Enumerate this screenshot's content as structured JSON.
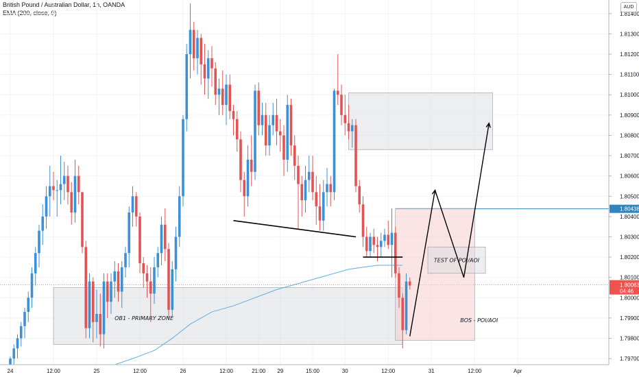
{
  "header": {
    "title": "British Pound / Australian Dollar, 1h, OANDA",
    "indicator": "EMA (200, close, 0)"
  },
  "currency_badge": "AUD",
  "chart_data": {
    "type": "candlestick",
    "symbol": "GBPAUD",
    "y_ticks": [
      "1.81400",
      "1.81300",
      "1.81200",
      "1.81100",
      "1.81000",
      "1.80900",
      "1.80800",
      "1.80700",
      "1.80600",
      "1.80500",
      "1.80400",
      "1.80300",
      "1.80200",
      "1.80100",
      "1.80000",
      "1.79900",
      "1.79800",
      "1.79700"
    ],
    "ylim": [
      1.7966,
      1.8145
    ],
    "x_ticks": [
      {
        "label": "24",
        "bar": 0
      },
      {
        "label": "12:00",
        "bar": 12
      },
      {
        "label": "25",
        "bar": 24
      },
      {
        "label": "12:00",
        "bar": 36
      },
      {
        "label": "26",
        "bar": 48
      },
      {
        "label": "12:00",
        "bar": 60
      },
      {
        "label": "21:00",
        "bar": 69
      },
      {
        "label": "29",
        "bar": 75
      },
      {
        "label": "15:00",
        "bar": 84
      },
      {
        "label": "30",
        "bar": 93
      },
      {
        "label": "12:00",
        "bar": 105
      },
      {
        "label": "31",
        "bar": 117
      },
      {
        "label": "12:00",
        "bar": 129
      },
      {
        "label": "Apr",
        "bar": 141
      }
    ],
    "candles": [
      [
        1.7967,
        1.7971,
        1.7963,
        1.797
      ],
      [
        1.797,
        1.7977,
        1.7965,
        1.7975
      ],
      [
        1.7975,
        1.7982,
        1.797,
        1.798
      ],
      [
        1.798,
        1.7988,
        1.7976,
        1.7986
      ],
      [
        1.7986,
        1.7995,
        1.798,
        1.7993
      ],
      [
        1.7993,
        1.8003,
        1.7988,
        1.8
      ],
      [
        1.8,
        1.8015,
        1.7995,
        1.8012
      ],
      [
        1.8012,
        1.8025,
        1.8006,
        1.8022
      ],
      [
        1.8022,
        1.8036,
        1.8015,
        1.8033
      ],
      [
        1.8033,
        1.8046,
        1.8026,
        1.804
      ],
      [
        1.804,
        1.8055,
        1.8034,
        1.805
      ],
      [
        1.805,
        1.8065,
        1.804,
        1.8055
      ],
      [
        1.8055,
        1.8062,
        1.8048,
        1.8053
      ],
      [
        1.8053,
        1.8058,
        1.804,
        1.8053
      ],
      [
        1.8053,
        1.807,
        1.8046,
        1.8056
      ],
      [
        1.8056,
        1.8067,
        1.8048,
        1.806
      ],
      [
        1.806,
        1.8065,
        1.8046,
        1.8052
      ],
      [
        1.8052,
        1.8057,
        1.8036,
        1.8042
      ],
      [
        1.8042,
        1.8068,
        1.8037,
        1.806
      ],
      [
        1.806,
        1.8065,
        1.8046,
        1.8052
      ],
      [
        1.8052,
        1.8052,
        1.8022,
        1.8025
      ],
      [
        1.8025,
        1.8028,
        1.798,
        1.7985
      ],
      [
        1.7985,
        1.8012,
        1.798,
        1.8008
      ],
      [
        1.8008,
        1.801,
        1.7978,
        1.7988
      ],
      [
        1.7988,
        1.8004,
        1.798,
        1.7992
      ],
      [
        1.7992,
        1.8002,
        1.7976,
        1.7982
      ],
      [
        1.7982,
        1.8012,
        1.7975,
        1.8008
      ],
      [
        1.8008,
        1.8012,
        1.799,
        1.7998
      ],
      [
        1.7998,
        1.8012,
        1.7992,
        1.8008
      ],
      [
        1.8008,
        1.8018,
        1.8,
        1.8013
      ],
      [
        1.8013,
        1.8017,
        1.7998,
        1.8003
      ],
      [
        1.8003,
        1.8018,
        1.7995,
        1.8015
      ],
      [
        1.8015,
        1.8025,
        1.801,
        1.8022
      ],
      [
        1.8022,
        1.8045,
        1.8015,
        1.8042
      ],
      [
        1.8042,
        1.8055,
        1.8035,
        1.805
      ],
      [
        1.805,
        1.8052,
        1.8035,
        1.804
      ],
      [
        1.804,
        1.8042,
        1.8012,
        1.8017
      ],
      [
        1.8017,
        1.802,
        1.8005,
        1.8012
      ],
      [
        1.8012,
        1.8016,
        1.8,
        1.8008
      ],
      [
        1.8008,
        1.8015,
        1.7988,
        1.8002
      ],
      [
        1.8002,
        1.802,
        1.7997,
        1.8015
      ],
      [
        1.8015,
        1.8025,
        1.801,
        1.8022
      ],
      [
        1.8022,
        1.804,
        1.8016,
        1.8036
      ],
      [
        1.8036,
        1.8044,
        1.8018,
        1.8024
      ],
      [
        1.8024,
        1.8027,
        1.799,
        1.7994
      ],
      [
        1.7994,
        1.8018,
        1.799,
        1.8014
      ],
      [
        1.8014,
        1.8035,
        1.8008,
        1.803
      ],
      [
        1.803,
        1.8055,
        1.8025,
        1.805
      ],
      [
        1.805,
        1.809,
        1.8045,
        1.8088
      ],
      [
        1.8088,
        1.8125,
        1.8082,
        1.812
      ],
      [
        1.812,
        1.8145,
        1.8108,
        1.8132
      ],
      [
        1.8132,
        1.8136,
        1.8112,
        1.8118
      ],
      [
        1.8118,
        1.8132,
        1.811,
        1.8128
      ],
      [
        1.8128,
        1.813,
        1.8105,
        1.8115
      ],
      [
        1.8115,
        1.8125,
        1.81,
        1.8108
      ],
      [
        1.8108,
        1.8122,
        1.8098,
        1.8118
      ],
      [
        1.8118,
        1.8124,
        1.8104,
        1.8113
      ],
      [
        1.8113,
        1.8116,
        1.8095,
        1.81
      ],
      [
        1.81,
        1.8108,
        1.809,
        1.8103
      ],
      [
        1.8103,
        1.8112,
        1.809,
        1.8095
      ],
      [
        1.8095,
        1.811,
        1.8085,
        1.8105
      ],
      [
        1.8105,
        1.811,
        1.8088,
        1.8092
      ],
      [
        1.8092,
        1.8095,
        1.808,
        1.8088
      ],
      [
        1.8088,
        1.8092,
        1.8072,
        1.8078
      ],
      [
        1.8078,
        1.8082,
        1.8052,
        1.8058
      ],
      [
        1.8058,
        1.8062,
        1.804,
        1.805
      ],
      [
        1.805,
        1.8075,
        1.8045,
        1.8068
      ],
      [
        1.8068,
        1.808,
        1.8055,
        1.8062
      ],
      [
        1.8062,
        1.8105,
        1.8058,
        1.8102
      ],
      [
        1.8102,
        1.8106,
        1.808,
        1.8085
      ],
      [
        1.8085,
        1.8096,
        1.808,
        1.809
      ],
      [
        1.809,
        1.8096,
        1.807,
        1.8075
      ],
      [
        1.8075,
        1.809,
        1.807,
        1.8085
      ],
      [
        1.8085,
        1.8096,
        1.808,
        1.809
      ],
      [
        1.809,
        1.8098,
        1.8075,
        1.8082
      ],
      [
        1.8082,
        1.8088,
        1.8072,
        1.808
      ],
      [
        1.808,
        1.8085,
        1.806,
        1.8068
      ],
      [
        1.8068,
        1.81,
        1.8062,
        1.8095
      ],
      [
        1.8095,
        1.8098,
        1.807,
        1.8075
      ],
      [
        1.8075,
        1.808,
        1.8058,
        1.8065
      ],
      [
        1.8065,
        1.807,
        1.8034,
        1.8056
      ],
      [
        1.8056,
        1.806,
        1.804,
        1.8048
      ],
      [
        1.8048,
        1.8065,
        1.8042,
        1.8058
      ],
      [
        1.8058,
        1.807,
        1.8052,
        1.8062
      ],
      [
        1.8062,
        1.807,
        1.8048,
        1.8052
      ],
      [
        1.8052,
        1.806,
        1.8036,
        1.8045
      ],
      [
        1.8045,
        1.8056,
        1.8033,
        1.8038
      ],
      [
        1.8038,
        1.8058,
        1.8033,
        1.8052
      ],
      [
        1.8052,
        1.8064,
        1.8045,
        1.8056
      ],
      [
        1.8056,
        1.806,
        1.8045,
        1.8052
      ],
      [
        1.8052,
        1.8103,
        1.8048,
        1.8102
      ],
      [
        1.8102,
        1.812,
        1.8095,
        1.81
      ],
      [
        1.81,
        1.8105,
        1.8085,
        1.809
      ],
      [
        1.809,
        1.81,
        1.808,
        1.8086
      ],
      [
        1.8086,
        1.8095,
        1.8078,
        1.8082
      ],
      [
        1.8082,
        1.8088,
        1.8074,
        1.8085
      ],
      [
        1.8085,
        1.8088,
        1.8052,
        1.8055
      ],
      [
        1.8055,
        1.8058,
        1.8042,
        1.8046
      ],
      [
        1.8046,
        1.805,
        1.8025,
        1.803
      ],
      [
        1.803,
        1.8035,
        1.802,
        1.8023
      ],
      [
        1.8023,
        1.8032,
        1.802,
        1.803
      ],
      [
        1.803,
        1.8034,
        1.8022,
        1.8026
      ],
      [
        1.8026,
        1.803,
        1.8018,
        1.8025
      ],
      [
        1.8025,
        1.8032,
        1.802,
        1.8028
      ],
      [
        1.8028,
        1.8034,
        1.8025,
        1.8031
      ],
      [
        1.8031,
        1.8038,
        1.8024,
        1.8026
      ],
      [
        1.8026,
        1.8044,
        1.801,
        1.8032
      ],
      [
        1.8032,
        1.8035,
        1.801,
        1.8012
      ],
      [
        1.8012,
        1.8015,
        1.7995,
        1.8
      ],
      [
        1.8,
        1.8002,
        1.7975,
        1.7984
      ],
      [
        1.7984,
        1.8012,
        1.7982,
        1.8008
      ],
      [
        1.8008,
        1.801,
        1.8004,
        1.8006
      ]
    ],
    "ema200": [
      [
        29,
        1.7967
      ],
      [
        34,
        1.797
      ],
      [
        40,
        1.7974
      ],
      [
        45,
        1.798
      ],
      [
        50,
        1.7987
      ],
      [
        56,
        1.7993
      ],
      [
        62,
        1.7996
      ],
      [
        68,
        1.8
      ],
      [
        74,
        1.8004
      ],
      [
        80,
        1.8007
      ],
      [
        86,
        1.801
      ],
      [
        90,
        1.8012
      ],
      [
        94,
        1.8014
      ],
      [
        98,
        1.8015
      ],
      [
        102,
        1.8016
      ],
      [
        106,
        1.8016
      ],
      [
        109,
        1.8016
      ]
    ],
    "price_line": {
      "value": "1.80438",
      "color": "#2e86c1"
    },
    "current_price": {
      "value": "1.80063",
      "countdown": "04:46",
      "color": "#ef5350"
    },
    "zones": [
      {
        "label": "OB1 - PRIMARY ZONE",
        "x0": 12,
        "x1": 109,
        "y0": 1.8005,
        "y1": 1.7977,
        "fill": "#d9dbe0"
      },
      {
        "label": "BOS - POI/AOI",
        "x0": 107,
        "x1": 129,
        "y0": 1.8044,
        "y1": 1.7979,
        "fill": "#f8c9c9"
      },
      {
        "label": "TEST OF POI/AOI",
        "x0": 116,
        "x1": 132,
        "y0": 1.8025,
        "y1": 1.8012,
        "fill": "#dcdde1"
      },
      {
        "label": "",
        "x0": 94,
        "x1": 134,
        "y0": 1.8101,
        "y1": 1.8073,
        "fill": "#dcdde1"
      }
    ],
    "trendlines": [
      {
        "x0": 62,
        "y0": 1.8038,
        "x1": 96,
        "y0b": 1.803
      },
      {
        "x0": 98,
        "y0": 1.802,
        "x1": 109,
        "y0b": 1.802
      }
    ],
    "arrows": [
      [
        111,
        1.7981
      ],
      [
        118,
        1.8053
      ],
      [
        126,
        1.801
      ],
      [
        133,
        1.8086
      ]
    ],
    "colors": {
      "up": "#3d8fd6",
      "down": "#e25454",
      "ema": "#5dade2"
    }
  }
}
